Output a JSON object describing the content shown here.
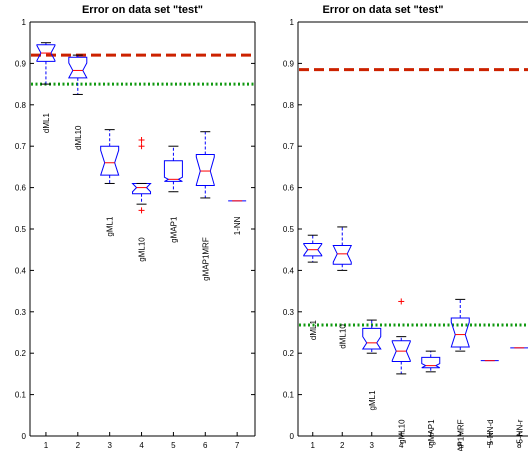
{
  "chart_data": [
    {
      "type": "box",
      "title": "Error on data set \"test\"",
      "xlabel": "",
      "ylabel": "",
      "ylim": [
        0,
        1
      ],
      "yticks": [
        "0",
        "0.1",
        "0.2",
        "0.3",
        "0.4",
        "0.5",
        "0.6",
        "0.7",
        "0.8",
        "0.9",
        "1"
      ],
      "xticks": [
        "1",
        "2",
        "3",
        "4",
        "5",
        "6",
        "7"
      ],
      "reference_lines": [
        {
          "value": 0.92,
          "color": "#cc2200",
          "style": "dashed"
        },
        {
          "value": 0.85,
          "color": "#119911",
          "style": "dotted"
        }
      ],
      "boxes": [
        {
          "label": "dML1",
          "whisker_low": 0.85,
          "q1": 0.905,
          "median": 0.925,
          "q3": 0.945,
          "whisker_high": 0.95,
          "outliers": []
        },
        {
          "label": "dML10",
          "whisker_low": 0.825,
          "q1": 0.865,
          "median": 0.883,
          "q3": 0.915,
          "whisker_high": 0.92,
          "outliers": []
        },
        {
          "label": "gML1",
          "whisker_low": 0.61,
          "q1": 0.63,
          "median": 0.66,
          "q3": 0.7,
          "whisker_high": 0.74,
          "outliers": []
        },
        {
          "label": "gML10",
          "whisker_low": 0.56,
          "q1": 0.585,
          "median": 0.6,
          "q3": 0.61,
          "whisker_high": 0.61,
          "outliers": [
            0.715,
            0.7,
            0.545
          ]
        },
        {
          "label": "gMAP1",
          "whisker_low": 0.59,
          "q1": 0.615,
          "median": 0.62,
          "q3": 0.665,
          "whisker_high": 0.7,
          "outliers": []
        },
        {
          "label": "gMAP1MRF",
          "whisker_low": 0.575,
          "q1": 0.605,
          "median": 0.64,
          "q3": 0.68,
          "whisker_high": 0.735,
          "outliers": []
        },
        {
          "label": "1-NN",
          "whisker_low": 0.568,
          "q1": 0.568,
          "median": 0.568,
          "q3": 0.568,
          "whisker_high": 0.568,
          "outliers": []
        }
      ]
    },
    {
      "type": "box",
      "title": "Error on data set \"test\"",
      "xlabel": "",
      "ylabel": "",
      "ylim": [
        0,
        1
      ],
      "yticks": [
        "0",
        "0.1",
        "0.2",
        "0.3",
        "0.4",
        "0.5",
        "0.6",
        "0.7",
        "0.8",
        "0.9",
        "1"
      ],
      "xticks": [
        "1",
        "2",
        "3",
        "4",
        "5",
        "6",
        "7",
        "8"
      ],
      "reference_lines": [
        {
          "value": 0.885,
          "color": "#cc2200",
          "style": "dashed"
        },
        {
          "value": 0.268,
          "color": "#119911",
          "style": "dotted"
        }
      ],
      "boxes": [
        {
          "label": "dML1",
          "whisker_low": 0.42,
          "q1": 0.435,
          "median": 0.45,
          "q3": 0.465,
          "whisker_high": 0.485,
          "outliers": []
        },
        {
          "label": "dML10",
          "whisker_low": 0.4,
          "q1": 0.415,
          "median": 0.44,
          "q3": 0.46,
          "whisker_high": 0.505,
          "outliers": []
        },
        {
          "label": "gML1",
          "whisker_low": 0.2,
          "q1": 0.21,
          "median": 0.225,
          "q3": 0.26,
          "whisker_high": 0.28,
          "outliers": []
        },
        {
          "label": "gML10",
          "whisker_low": 0.15,
          "q1": 0.18,
          "median": 0.205,
          "q3": 0.23,
          "whisker_high": 0.24,
          "outliers": [
            0.325
          ]
        },
        {
          "label": "gMAP1",
          "whisker_low": 0.155,
          "q1": 0.165,
          "median": 0.17,
          "q3": 0.19,
          "whisker_high": 0.205,
          "outliers": []
        },
        {
          "label": "gMAP1MRF",
          "whisker_low": 0.205,
          "q1": 0.215,
          "median": 0.245,
          "q3": 0.285,
          "whisker_high": 0.33,
          "outliers": []
        },
        {
          "label": "5-NN-d",
          "whisker_low": 0.182,
          "q1": 0.182,
          "median": 0.182,
          "q3": 0.182,
          "whisker_high": 0.182,
          "outliers": []
        },
        {
          "label": "5-NN-r",
          "whisker_low": 0.213,
          "q1": 0.213,
          "median": 0.213,
          "q3": 0.213,
          "whisker_high": 0.213,
          "outliers": []
        }
      ]
    }
  ]
}
